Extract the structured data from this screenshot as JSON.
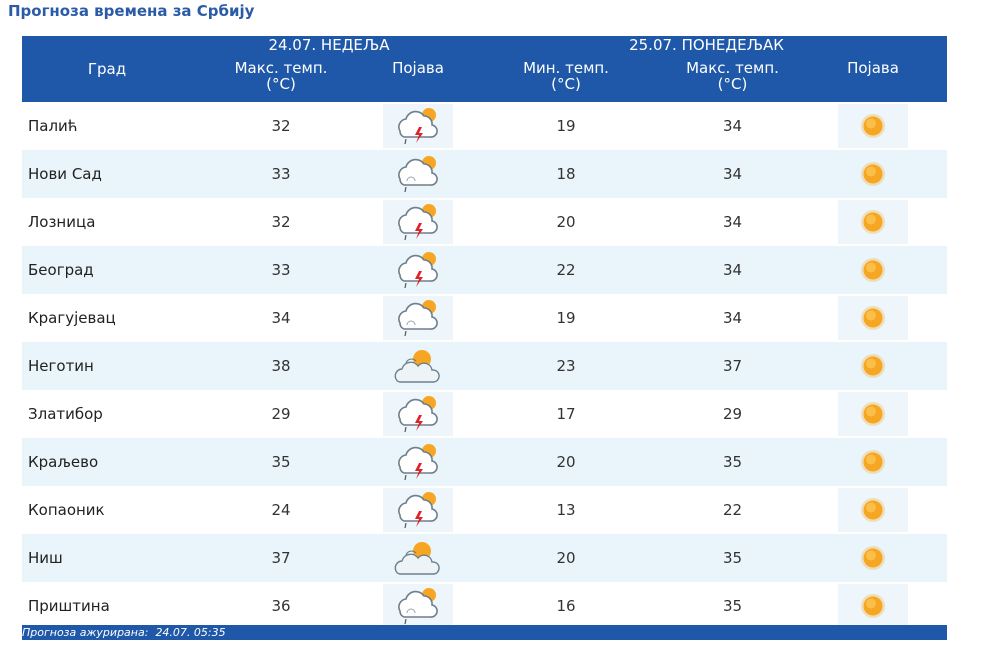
{
  "page_title": "Прогноза времена за Србију",
  "header": {
    "city": "Град",
    "day1": "24.07. НЕДЕЉА",
    "day2": "25.07. ПОНЕДЕЉАК",
    "max_temp": "Макс. темп.",
    "min_temp": "Мин. темп.",
    "unit": "(°C)",
    "phenomenon": "Појава"
  },
  "rows": [
    {
      "city": "Палић",
      "max1": "32",
      "icon1": "thunderstorm-icon",
      "min2": "19",
      "max2": "34",
      "icon2": "sun-icon"
    },
    {
      "city": "Нови Сад",
      "max1": "33",
      "icon1": "cloud-rain-sun-icon",
      "min2": "18",
      "max2": "34",
      "icon2": "sun-icon"
    },
    {
      "city": "Лозница",
      "max1": "32",
      "icon1": "thunderstorm-icon",
      "min2": "20",
      "max2": "34",
      "icon2": "sun-icon"
    },
    {
      "city": "Београд",
      "max1": "33",
      "icon1": "thunderstorm-icon",
      "min2": "22",
      "max2": "34",
      "icon2": "sun-icon"
    },
    {
      "city": "Крагујевац",
      "max1": "34",
      "icon1": "cloud-rain-sun-icon",
      "min2": "19",
      "max2": "34",
      "icon2": "sun-icon"
    },
    {
      "city": "Неготин",
      "max1": "38",
      "icon1": "partly-cloudy-icon",
      "min2": "23",
      "max2": "37",
      "icon2": "sun-icon"
    },
    {
      "city": "Златибор",
      "max1": "29",
      "icon1": "thunderstorm-icon",
      "min2": "17",
      "max2": "29",
      "icon2": "sun-icon"
    },
    {
      "city": "Краљево",
      "max1": "35",
      "icon1": "thunderstorm-icon",
      "min2": "20",
      "max2": "35",
      "icon2": "sun-icon"
    },
    {
      "city": "Копаоник",
      "max1": "24",
      "icon1": "thunderstorm-icon",
      "min2": "13",
      "max2": "22",
      "icon2": "sun-icon"
    },
    {
      "city": "Ниш",
      "max1": "37",
      "icon1": "partly-cloudy-icon",
      "min2": "20",
      "max2": "35",
      "icon2": "sun-icon"
    },
    {
      "city": "Приштина",
      "max1": "36",
      "icon1": "cloud-rain-sun-icon",
      "min2": "16",
      "max2": "35",
      "icon2": "sun-icon"
    }
  ],
  "footer": {
    "updated_label": "Прогноза ажурирана:",
    "updated_value": "24.07. 05:35"
  },
  "colors": {
    "header_bg": "#1f58a8",
    "title": "#2a5ba6",
    "row_alt": "#eaf5fb",
    "sun": "#f6a623",
    "lightning": "#d9262b"
  }
}
